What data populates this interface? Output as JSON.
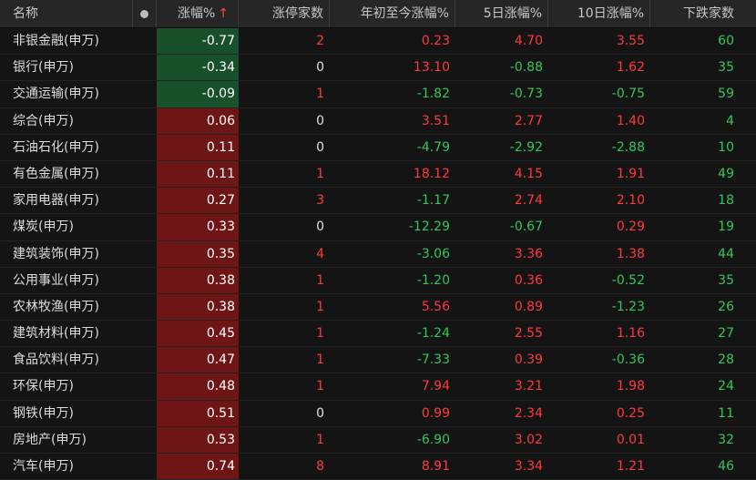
{
  "header": {
    "name": "名称",
    "chg": "涨幅%",
    "sort_arrow": "↑",
    "limit_up": "涨停家数",
    "ytd": "年初至今涨幅%",
    "d5": "5日涨幅%",
    "d10": "10日涨幅%",
    "down_count": "下跌家数"
  },
  "colors": {
    "up": "#ff3a3a",
    "down": "#35c657",
    "up_bg": "#6e1616",
    "down_bg": "#17502a"
  },
  "rows": [
    {
      "name": "非银金融(申万)",
      "chg": "-0.77",
      "limit_up": "2",
      "ytd": "0.23",
      "d5": "4.70",
      "d10": "3.55",
      "down": "60"
    },
    {
      "name": "银行(申万)",
      "chg": "-0.34",
      "limit_up": "0",
      "ytd": "13.10",
      "d5": "-0.88",
      "d10": "1.62",
      "down": "35"
    },
    {
      "name": "交通运输(申万)",
      "chg": "-0.09",
      "limit_up": "1",
      "ytd": "-1.82",
      "d5": "-0.73",
      "d10": "-0.75",
      "down": "59"
    },
    {
      "name": "综合(申万)",
      "chg": "0.06",
      "limit_up": "0",
      "ytd": "3.51",
      "d5": "2.77",
      "d10": "1.40",
      "down": "4"
    },
    {
      "name": "石油石化(申万)",
      "chg": "0.11",
      "limit_up": "0",
      "ytd": "-4.79",
      "d5": "-2.92",
      "d10": "-2.88",
      "down": "10"
    },
    {
      "name": "有色金属(申万)",
      "chg": "0.11",
      "limit_up": "1",
      "ytd": "18.12",
      "d5": "4.15",
      "d10": "1.91",
      "down": "49"
    },
    {
      "name": "家用电器(申万)",
      "chg": "0.27",
      "limit_up": "3",
      "ytd": "-1.17",
      "d5": "2.74",
      "d10": "2.10",
      "down": "18"
    },
    {
      "name": "煤炭(申万)",
      "chg": "0.33",
      "limit_up": "0",
      "ytd": "-12.29",
      "d5": "-0.67",
      "d10": "0.29",
      "down": "19"
    },
    {
      "name": "建筑装饰(申万)",
      "chg": "0.35",
      "limit_up": "4",
      "ytd": "-3.06",
      "d5": "3.36",
      "d10": "1.38",
      "down": "44"
    },
    {
      "name": "公用事业(申万)",
      "chg": "0.38",
      "limit_up": "1",
      "ytd": "-1.20",
      "d5": "0.36",
      "d10": "-0.52",
      "down": "35"
    },
    {
      "name": "农林牧渔(申万)",
      "chg": "0.38",
      "limit_up": "1",
      "ytd": "5.56",
      "d5": "0.89",
      "d10": "-1.23",
      "down": "26"
    },
    {
      "name": "建筑材料(申万)",
      "chg": "0.45",
      "limit_up": "1",
      "ytd": "-1.24",
      "d5": "2.55",
      "d10": "1.16",
      "down": "27"
    },
    {
      "name": "食品饮料(申万)",
      "chg": "0.47",
      "limit_up": "1",
      "ytd": "-7.33",
      "d5": "0.39",
      "d10": "-0.36",
      "down": "28"
    },
    {
      "name": "环保(申万)",
      "chg": "0.48",
      "limit_up": "1",
      "ytd": "7.94",
      "d5": "3.21",
      "d10": "1.98",
      "down": "24"
    },
    {
      "name": "钢铁(申万)",
      "chg": "0.51",
      "limit_up": "0",
      "ytd": "0.99",
      "d5": "2.34",
      "d10": "0.25",
      "down": "11"
    },
    {
      "name": "房地产(申万)",
      "chg": "0.53",
      "limit_up": "1",
      "ytd": "-6.90",
      "d5": "3.02",
      "d10": "0.01",
      "down": "32"
    },
    {
      "name": "汽车(申万)",
      "chg": "0.74",
      "limit_up": "8",
      "ytd": "8.91",
      "d5": "3.34",
      "d10": "1.21",
      "down": "46"
    }
  ]
}
